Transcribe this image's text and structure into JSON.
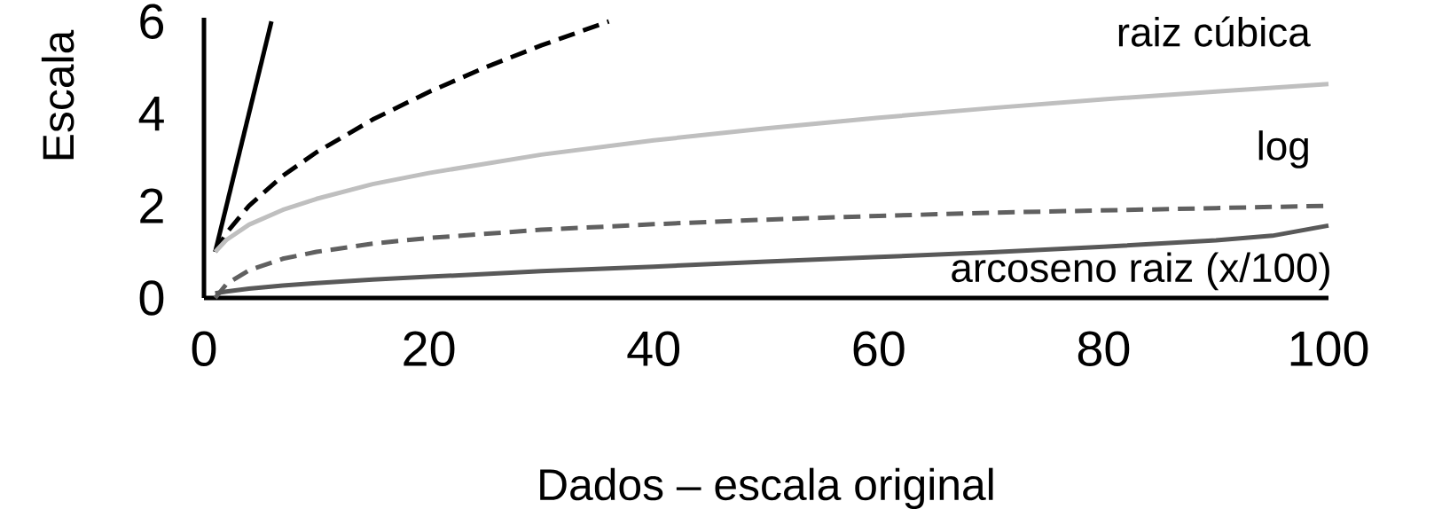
{
  "chart_data": {
    "type": "line",
    "xlabel": "Dados – escala original",
    "ylabel": "Escala",
    "xlim": [
      0,
      100
    ],
    "ylim": [
      0,
      6.08
    ],
    "xticks": [
      0,
      20,
      40,
      60,
      80,
      100
    ],
    "yticks": [
      0,
      2,
      4,
      6
    ],
    "series": [
      {
        "color": "#000000",
        "line_style": "solid",
        "x": [
          1,
          6
        ],
        "values": [
          1,
          6
        ]
      },
      {
        "color": "#000000",
        "line_style": "dashed",
        "x": [
          1,
          2,
          4,
          7,
          10,
          15,
          20,
          25,
          30,
          36
        ],
        "values": [
          1,
          1.41,
          2,
          2.65,
          3.16,
          3.87,
          4.47,
          5,
          5.48,
          6
        ]
      },
      {
        "name": "raiz cúbica",
        "color": "#bfbfbf",
        "line_style": "solid",
        "x": [
          1,
          2,
          4,
          7,
          10,
          15,
          20,
          30,
          40,
          50,
          60,
          70,
          80,
          90,
          100
        ],
        "values": [
          1,
          1.26,
          1.59,
          1.91,
          2.15,
          2.47,
          2.71,
          3.11,
          3.42,
          3.68,
          3.91,
          4.12,
          4.31,
          4.48,
          4.64
        ]
      },
      {
        "name": "log",
        "color": "#606060",
        "line_style": "dashed",
        "x": [
          1,
          2,
          4,
          7,
          10,
          15,
          20,
          30,
          40,
          50,
          60,
          70,
          80,
          90,
          100
        ],
        "values": [
          0,
          0.3,
          0.6,
          0.85,
          1,
          1.18,
          1.3,
          1.48,
          1.6,
          1.7,
          1.78,
          1.85,
          1.9,
          1.95,
          2
        ]
      },
      {
        "name": "arcoseno raiz (x/100)",
        "color": "#595959",
        "line_style": "solid",
        "x": [
          1,
          2,
          4,
          7,
          10,
          15,
          20,
          30,
          40,
          50,
          60,
          70,
          80,
          90,
          95,
          100
        ],
        "values": [
          0.1,
          0.14,
          0.2,
          0.27,
          0.32,
          0.4,
          0.46,
          0.58,
          0.68,
          0.79,
          0.89,
          0.99,
          1.11,
          1.25,
          1.35,
          1.57
        ]
      }
    ]
  }
}
